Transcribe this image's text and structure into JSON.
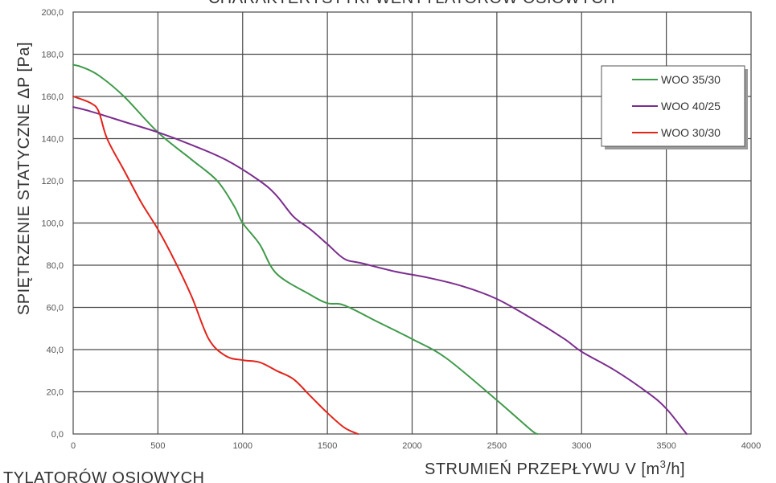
{
  "chart_data": {
    "type": "line",
    "title": "CHARAKTERYSTYKI WENTYLATORÓW OSIOWYCH",
    "bottom_caption": "TYLATORÓW OSIOWYCH",
    "xlabel_main": "STRUMIEŃ PRZEPŁYWU V [m",
    "xlabel_sup": "3",
    "xlabel_tail": "/h]",
    "ylabel": "SPIĘTRZENIE STATYCZNE ΔP [Pa]",
    "xlim": [
      0,
      4000
    ],
    "ylim": [
      0,
      200
    ],
    "x_ticks": [
      "0",
      "500",
      "1000",
      "1500",
      "2000",
      "2500",
      "3000",
      "3500",
      "4000"
    ],
    "y_ticks": [
      "0,0",
      "20,0",
      "40,0",
      "60,0",
      "80,0",
      "100,0",
      "120,0",
      "140,0",
      "160,0",
      "180,0",
      "200,0"
    ],
    "grid": true,
    "legend_position": "top-right",
    "series": [
      {
        "name": "WOO 35/30",
        "color": "#3f9a4a",
        "x": [
          0,
          50,
          150,
          300,
          500,
          700,
          850,
          950,
          1000,
          1100,
          1200,
          1400,
          1500,
          1600,
          1800,
          2000,
          2200,
          2500,
          2700,
          2740
        ],
        "y": [
          175,
          174,
          170,
          160,
          143,
          130,
          120,
          108,
          100,
          90,
          76,
          66,
          62,
          61,
          53,
          45,
          36,
          16,
          2,
          0
        ]
      },
      {
        "name": "WOO 40/25",
        "color": "#7b2d8e",
        "x": [
          0,
          100,
          300,
          500,
          700,
          900,
          1100,
          1200,
          1300,
          1400,
          1500,
          1600,
          1700,
          1900,
          2100,
          2300,
          2500,
          2700,
          2900,
          3000,
          3200,
          3400,
          3500,
          3600,
          3620
        ],
        "y": [
          155,
          153,
          148,
          143,
          137,
          130,
          120,
          113,
          103,
          97,
          90,
          83,
          81,
          77,
          74,
          70,
          64,
          55,
          45,
          39,
          30,
          19,
          12,
          2,
          0
        ]
      },
      {
        "name": "WOO 30/30",
        "color": "#e2231a",
        "x": [
          0,
          100,
          150,
          200,
          300,
          400,
          500,
          600,
          700,
          800,
          900,
          1000,
          1100,
          1200,
          1300,
          1400,
          1500,
          1600,
          1680
        ],
        "y": [
          160,
          157,
          153,
          140,
          125,
          110,
          97,
          82,
          65,
          45,
          37,
          35,
          34,
          30,
          26,
          18,
          10,
          3,
          0
        ]
      }
    ]
  }
}
